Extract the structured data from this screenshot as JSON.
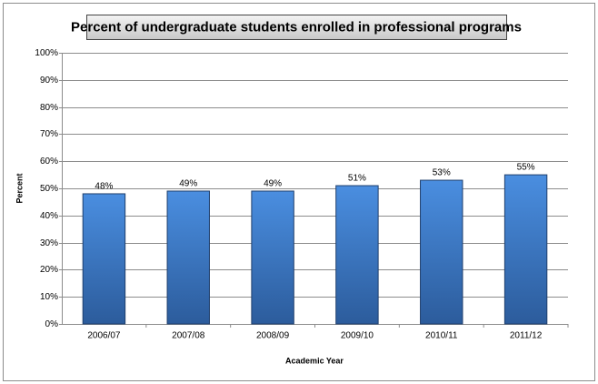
{
  "chart_data": {
    "type": "bar",
    "title": "Percent of undergraduate students enrolled in professional programs",
    "x_label": "Academic Year",
    "y_label": "Percent",
    "categories": [
      "2006/07",
      "2007/08",
      "2008/09",
      "2009/10",
      "2010/11",
      "2011/12"
    ],
    "values": [
      48,
      49,
      49,
      51,
      53,
      55
    ],
    "value_labels": [
      "48%",
      "49%",
      "49%",
      "51%",
      "53%",
      "55%"
    ],
    "color": "#3f7fcf",
    "ylim": [
      0,
      100
    ],
    "yticks": [
      {
        "value": 0,
        "label": "0%"
      },
      {
        "value": 10,
        "label": "10%"
      },
      {
        "value": 20,
        "label": "20%"
      },
      {
        "value": 30,
        "label": "30%"
      },
      {
        "value": 40,
        "label": "40%"
      },
      {
        "value": 50,
        "label": "50%"
      },
      {
        "value": 60,
        "label": "60%"
      },
      {
        "value": 70,
        "label": "70%"
      },
      {
        "value": 80,
        "label": "80%"
      },
      {
        "value": 90,
        "label": "90%"
      },
      {
        "value": 100,
        "label": "100%"
      }
    ],
    "grid": true
  }
}
